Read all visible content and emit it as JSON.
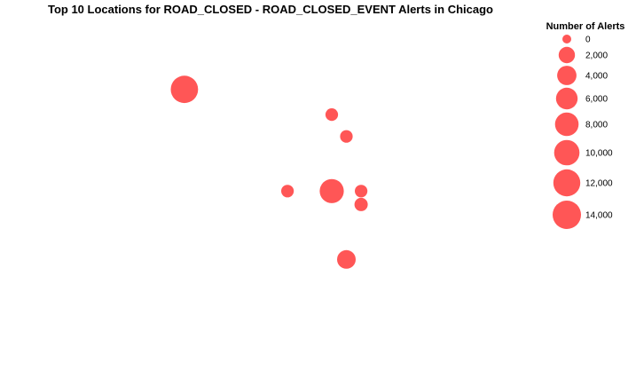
{
  "chart_data": {
    "type": "scatter",
    "title": "Top 10 Locations for ROAD_CLOSED - ROAD_CLOSED_EVENT Alerts in Chicago",
    "xlabel": "",
    "ylabel": "",
    "grid": false,
    "xlim": [
      -87.9,
      -87.55
    ],
    "ylim": [
      41.7,
      42.05
    ],
    "point_color": "#ff4d4d",
    "points": [
      {
        "lon": -87.7866,
        "lat": 41.9851,
        "alerts": 12500
      },
      {
        "lon": -87.6864,
        "lat": 41.9597,
        "alerts": 500
      },
      {
        "lon": -87.6764,
        "lat": 41.9378,
        "alerts": 500
      },
      {
        "lon": -87.7165,
        "lat": 41.8828,
        "alerts": 500
      },
      {
        "lon": -87.6864,
        "lat": 41.8828,
        "alerts": 8500
      },
      {
        "lon": -87.6664,
        "lat": 41.8828,
        "alerts": 500
      },
      {
        "lon": -87.6664,
        "lat": 41.8693,
        "alerts": 700
      },
      {
        "lon": -87.6764,
        "lat": 41.814,
        "alerts": 3500
      }
    ],
    "legend": {
      "title": "Number of Alerts",
      "placement": "top-right",
      "entries": [
        {
          "label": "0",
          "value": 0
        },
        {
          "label": "2,000",
          "value": 2000
        },
        {
          "label": "4,000",
          "value": 4000
        },
        {
          "label": "6,000",
          "value": 6000
        },
        {
          "label": "8,000",
          "value": 8000
        },
        {
          "label": "10,000",
          "value": 10000
        },
        {
          "label": "12,000",
          "value": 12000
        },
        {
          "label": "14,000",
          "value": 14000
        }
      ]
    }
  }
}
